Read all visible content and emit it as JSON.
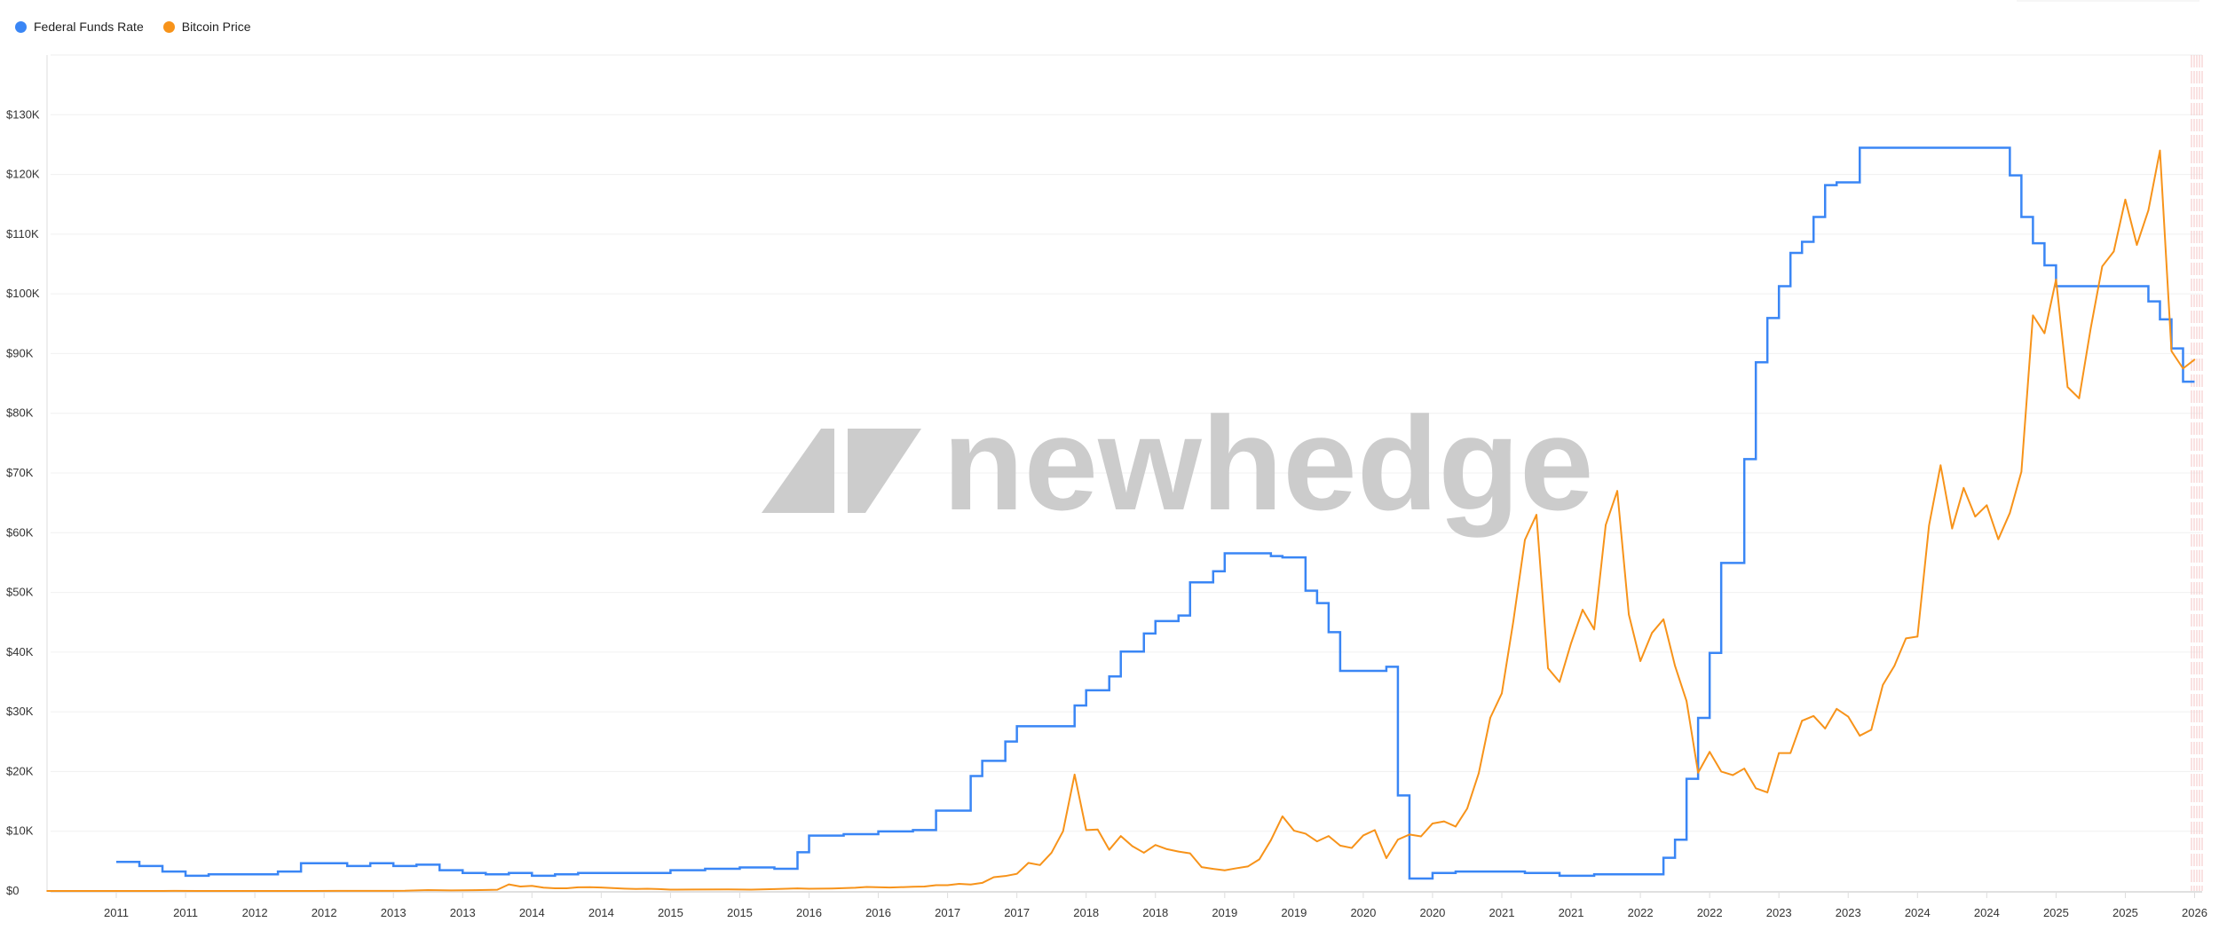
{
  "legend": [
    {
      "label": "Federal Funds Rate",
      "color": "#3a86f5"
    },
    {
      "label": "Bitcoin Price",
      "color": "#f7931a"
    }
  ],
  "watermark": {
    "text": "newhedge",
    "color": "#cccccc"
  },
  "chart_data": {
    "type": "line",
    "title": "",
    "xlabel": "",
    "ylabel": "",
    "ylim": [
      0,
      140000
    ],
    "y_ticks": [
      "$0",
      "$10K",
      "$20K",
      "$30K",
      "$40K",
      "$50K",
      "$60K",
      "$70K",
      "$80K",
      "$90K",
      "$100K",
      "$110K",
      "$120K",
      "$130K"
    ],
    "x_ticks": [
      "2011",
      "2011",
      "2012",
      "2012",
      "2013",
      "2013",
      "2014",
      "2014",
      "2015",
      "2015",
      "2016",
      "2016",
      "2017",
      "2017",
      "2018",
      "2018",
      "2019",
      "2019",
      "2020",
      "2020",
      "2021",
      "2021",
      "2022",
      "2022",
      "2023",
      "2023",
      "2024",
      "2024",
      "2025",
      "2025",
      "2026"
    ],
    "grid": true,
    "legend_position": "top-left",
    "shaded_region": {
      "from": "2025-12",
      "to": "2026-02",
      "color": "#f4c6c6"
    },
    "series": [
      {
        "name": "Federal Funds Rate",
        "color": "#3a86f5",
        "step": true,
        "axis": "hidden-right",
        "ylim": [
          -0.04,
          6.0
        ],
        "unit": "%",
        "points": [
          [
            "2011-01",
            0.17
          ],
          [
            "2011-03",
            0.14
          ],
          [
            "2011-05",
            0.1
          ],
          [
            "2011-07",
            0.07
          ],
          [
            "2011-09",
            0.08
          ],
          [
            "2011-11",
            0.08
          ],
          [
            "2012-01",
            0.08
          ],
          [
            "2012-03",
            0.1
          ],
          [
            "2012-05",
            0.16
          ],
          [
            "2012-07",
            0.16
          ],
          [
            "2012-09",
            0.14
          ],
          [
            "2012-11",
            0.16
          ],
          [
            "2013-01",
            0.14
          ],
          [
            "2013-03",
            0.15
          ],
          [
            "2013-05",
            0.11
          ],
          [
            "2013-07",
            0.09
          ],
          [
            "2013-09",
            0.08
          ],
          [
            "2013-11",
            0.09
          ],
          [
            "2014-01",
            0.07
          ],
          [
            "2014-03",
            0.08
          ],
          [
            "2014-05",
            0.09
          ],
          [
            "2014-07",
            0.09
          ],
          [
            "2015-01",
            0.11
          ],
          [
            "2015-04",
            0.12
          ],
          [
            "2015-07",
            0.13
          ],
          [
            "2015-10",
            0.12
          ],
          [
            "2015-12",
            0.24
          ],
          [
            "2016-01",
            0.36
          ],
          [
            "2016-04",
            0.37
          ],
          [
            "2016-07",
            0.39
          ],
          [
            "2016-10",
            0.4
          ],
          [
            "2016-12",
            0.54
          ],
          [
            "2017-03",
            0.79
          ],
          [
            "2017-04",
            0.9
          ],
          [
            "2017-06",
            1.04
          ],
          [
            "2017-07",
            1.15
          ],
          [
            "2017-10",
            1.15
          ],
          [
            "2017-12",
            1.3
          ],
          [
            "2018-01",
            1.41
          ],
          [
            "2018-03",
            1.51
          ],
          [
            "2018-04",
            1.69
          ],
          [
            "2018-06",
            1.82
          ],
          [
            "2018-07",
            1.91
          ],
          [
            "2018-09",
            1.95
          ],
          [
            "2018-10",
            2.19
          ],
          [
            "2018-12",
            2.27
          ],
          [
            "2019-01",
            2.4
          ],
          [
            "2019-05",
            2.38
          ],
          [
            "2019-06",
            2.37
          ],
          [
            "2019-08",
            2.13
          ],
          [
            "2019-09",
            2.04
          ],
          [
            "2019-10",
            1.83
          ],
          [
            "2019-11",
            1.55
          ],
          [
            "2020-03",
            1.58
          ],
          [
            "2020-04",
            0.65
          ],
          [
            "2020-05",
            0.05
          ],
          [
            "2020-07",
            0.09
          ],
          [
            "2020-09",
            0.1
          ],
          [
            "2021-03",
            0.09
          ],
          [
            "2021-06",
            0.07
          ],
          [
            "2021-09",
            0.08
          ],
          [
            "2022-03",
            0.2
          ],
          [
            "2022-04",
            0.33
          ],
          [
            "2022-05",
            0.77
          ],
          [
            "2022-06",
            1.21
          ],
          [
            "2022-07",
            1.68
          ],
          [
            "2022-08",
            2.33
          ],
          [
            "2022-10",
            3.08
          ],
          [
            "2022-11",
            3.78
          ],
          [
            "2022-12",
            4.1
          ],
          [
            "2023-01",
            4.33
          ],
          [
            "2023-02",
            4.57
          ],
          [
            "2023-03",
            4.65
          ],
          [
            "2023-04",
            4.83
          ],
          [
            "2023-05",
            5.06
          ],
          [
            "2023-06",
            5.08
          ],
          [
            "2023-08",
            5.33
          ],
          [
            "2024-09",
            5.13
          ],
          [
            "2024-10",
            4.83
          ],
          [
            "2024-11",
            4.64
          ],
          [
            "2024-12",
            4.48
          ],
          [
            "2025-01",
            4.33
          ],
          [
            "2025-09",
            4.22
          ],
          [
            "2025-10",
            4.09
          ],
          [
            "2025-11",
            3.88
          ],
          [
            "2025-12",
            3.64
          ],
          [
            "2026-01",
            3.64
          ]
        ]
      },
      {
        "name": "Bitcoin Price",
        "color": "#f7931a",
        "axis": "left",
        "unit": "USD",
        "points": [
          [
            "2010-07",
            0.05
          ],
          [
            "2010-10",
            0.1
          ],
          [
            "2011-01",
            0.5
          ],
          [
            "2011-03",
            0.8
          ],
          [
            "2011-05",
            8
          ],
          [
            "2011-06",
            17
          ],
          [
            "2011-08",
            8
          ],
          [
            "2011-10",
            3
          ],
          [
            "2011-12",
            4
          ],
          [
            "2012-03",
            5
          ],
          [
            "2012-06",
            6.7
          ],
          [
            "2012-09",
            12
          ],
          [
            "2012-12",
            13
          ],
          [
            "2013-01",
            20
          ],
          [
            "2013-02",
            33
          ],
          [
            "2013-03",
            93
          ],
          [
            "2013-04",
            140
          ],
          [
            "2013-06",
            97
          ],
          [
            "2013-08",
            135
          ],
          [
            "2013-10",
            200
          ],
          [
            "2013-11",
            1100
          ],
          [
            "2013-12",
            750
          ],
          [
            "2014-01",
            850
          ],
          [
            "2014-02",
            550
          ],
          [
            "2014-03",
            450
          ],
          [
            "2014-04",
            440
          ],
          [
            "2014-05",
            620
          ],
          [
            "2014-06",
            640
          ],
          [
            "2014-07",
            580
          ],
          [
            "2014-08",
            480
          ],
          [
            "2014-09",
            390
          ],
          [
            "2014-10",
            340
          ],
          [
            "2014-11",
            370
          ],
          [
            "2014-12",
            320
          ],
          [
            "2015-01",
            220
          ],
          [
            "2015-03",
            245
          ],
          [
            "2015-06",
            260
          ],
          [
            "2015-08",
            230
          ],
          [
            "2015-10",
            310
          ],
          [
            "2015-11",
            380
          ],
          [
            "2015-12",
            430
          ],
          [
            "2016-01",
            370
          ],
          [
            "2016-03",
            415
          ],
          [
            "2016-05",
            530
          ],
          [
            "2016-06",
            670
          ],
          [
            "2016-08",
            575
          ],
          [
            "2016-10",
            700
          ],
          [
            "2016-11",
            740
          ],
          [
            "2016-12",
            960
          ],
          [
            "2017-01",
            970
          ],
          [
            "2017-02",
            1190
          ],
          [
            "2017-03",
            1080
          ],
          [
            "2017-04",
            1350
          ],
          [
            "2017-05",
            2300
          ],
          [
            "2017-06",
            2500
          ],
          [
            "2017-07",
            2870
          ],
          [
            "2017-08",
            4700
          ],
          [
            "2017-09",
            4340
          ],
          [
            "2017-10",
            6400
          ],
          [
            "2017-11",
            10000
          ],
          [
            "2017-12",
            19500
          ],
          [
            "2018-01",
            10200
          ],
          [
            "2018-02",
            10300
          ],
          [
            "2018-03",
            6900
          ],
          [
            "2018-04",
            9200
          ],
          [
            "2018-05",
            7500
          ],
          [
            "2018-06",
            6400
          ],
          [
            "2018-07",
            7700
          ],
          [
            "2018-08",
            7000
          ],
          [
            "2018-09",
            6600
          ],
          [
            "2018-10",
            6300
          ],
          [
            "2018-11",
            4000
          ],
          [
            "2018-12",
            3700
          ],
          [
            "2019-01",
            3450
          ],
          [
            "2019-02",
            3800
          ],
          [
            "2019-03",
            4100
          ],
          [
            "2019-04",
            5300
          ],
          [
            "2019-05",
            8500
          ],
          [
            "2019-06",
            12500
          ],
          [
            "2019-07",
            10100
          ],
          [
            "2019-08",
            9600
          ],
          [
            "2019-09",
            8300
          ],
          [
            "2019-10",
            9200
          ],
          [
            "2019-11",
            7600
          ],
          [
            "2019-12",
            7200
          ],
          [
            "2020-01",
            9300
          ],
          [
            "2020-02",
            10200
          ],
          [
            "2020-03",
            5500
          ],
          [
            "2020-04",
            8600
          ],
          [
            "2020-05",
            9450
          ],
          [
            "2020-06",
            9140
          ],
          [
            "2020-07",
            11300
          ],
          [
            "2020-08",
            11650
          ],
          [
            "2020-09",
            10780
          ],
          [
            "2020-10",
            13800
          ],
          [
            "2020-11",
            19700
          ],
          [
            "2020-12",
            29000
          ],
          [
            "2021-01",
            33100
          ],
          [
            "2021-02",
            45200
          ],
          [
            "2021-03",
            58800
          ],
          [
            "2021-04",
            63000
          ],
          [
            "2021-05",
            37300
          ],
          [
            "2021-06",
            35000
          ],
          [
            "2021-07",
            41500
          ],
          [
            "2021-08",
            47100
          ],
          [
            "2021-09",
            43800
          ],
          [
            "2021-10",
            61300
          ],
          [
            "2021-11",
            67000
          ],
          [
            "2021-12",
            46300
          ],
          [
            "2022-01",
            38500
          ],
          [
            "2022-02",
            43200
          ],
          [
            "2022-03",
            45500
          ],
          [
            "2022-04",
            37700
          ],
          [
            "2022-05",
            31800
          ],
          [
            "2022-06",
            19800
          ],
          [
            "2022-07",
            23300
          ],
          [
            "2022-08",
            20000
          ],
          [
            "2022-09",
            19400
          ],
          [
            "2022-10",
            20500
          ],
          [
            "2022-11",
            17200
          ],
          [
            "2022-12",
            16500
          ],
          [
            "2023-01",
            23100
          ],
          [
            "2023-02",
            23100
          ],
          [
            "2023-03",
            28500
          ],
          [
            "2023-04",
            29300
          ],
          [
            "2023-05",
            27200
          ],
          [
            "2023-06",
            30500
          ],
          [
            "2023-07",
            29200
          ],
          [
            "2023-08",
            26000
          ],
          [
            "2023-09",
            27000
          ],
          [
            "2023-10",
            34500
          ],
          [
            "2023-11",
            37700
          ],
          [
            "2023-12",
            42300
          ],
          [
            "2024-01",
            42600
          ],
          [
            "2024-02",
            61200
          ],
          [
            "2024-03",
            71300
          ],
          [
            "2024-04",
            60700
          ],
          [
            "2024-05",
            67500
          ],
          [
            "2024-06",
            62700
          ],
          [
            "2024-07",
            64600
          ],
          [
            "2024-08",
            58900
          ],
          [
            "2024-09",
            63300
          ],
          [
            "2024-10",
            70200
          ],
          [
            "2024-11",
            96400
          ],
          [
            "2024-12",
            93400
          ],
          [
            "2025-01",
            102400
          ],
          [
            "2025-02",
            84400
          ],
          [
            "2025-03",
            82500
          ],
          [
            "2025-04",
            94200
          ],
          [
            "2025-05",
            104600
          ],
          [
            "2025-06",
            107100
          ],
          [
            "2025-07",
            115800
          ],
          [
            "2025-08",
            108200
          ],
          [
            "2025-09",
            114000
          ],
          [
            "2025-10",
            124000
          ],
          [
            "2025-11",
            90400
          ],
          [
            "2025-12",
            87500
          ],
          [
            "2026-01",
            89000
          ]
        ]
      }
    ]
  }
}
